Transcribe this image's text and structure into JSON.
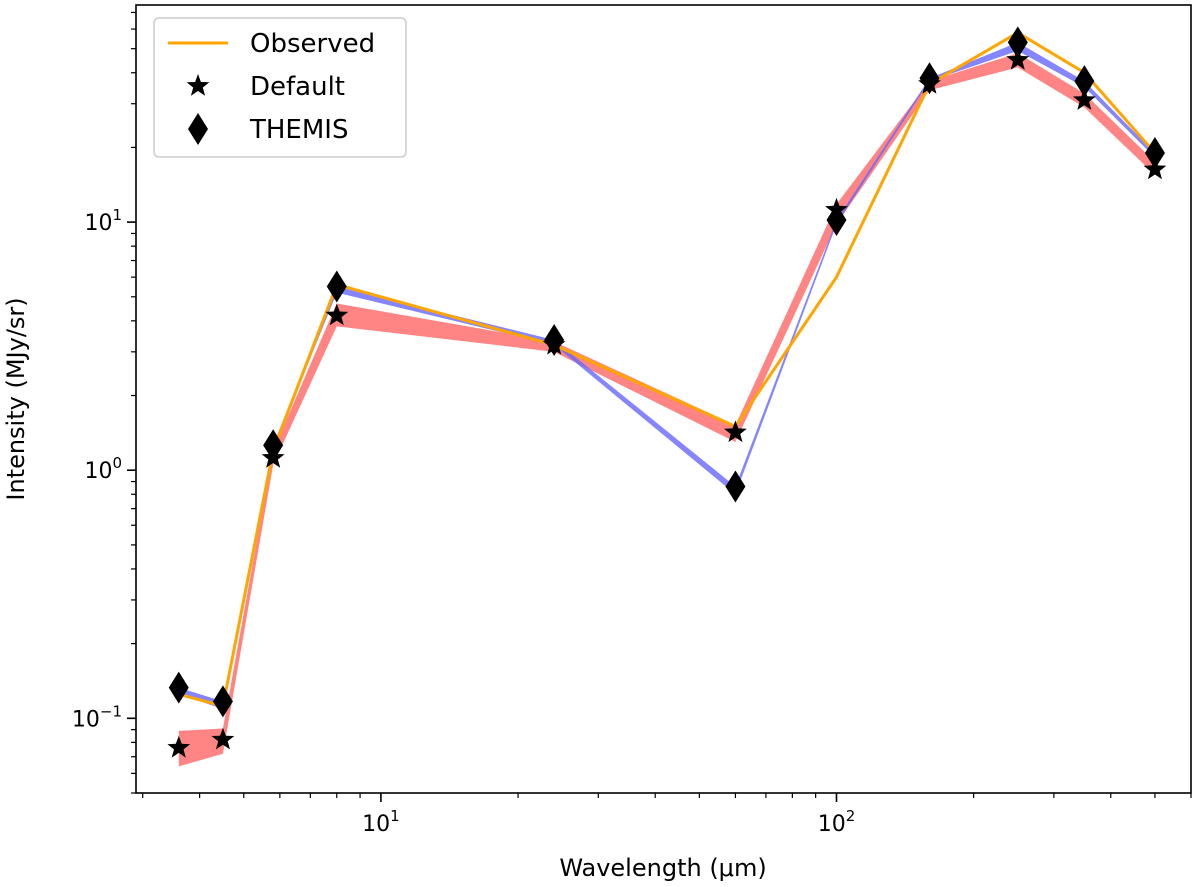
{
  "chart_data": {
    "type": "line",
    "xlabel": "Wavelength (μm)",
    "ylabel": "Intensity (MJy/sr)",
    "xscale": "log",
    "yscale": "log",
    "xlim": [
      2.9,
      600
    ],
    "ylim": [
      0.05,
      75
    ],
    "x_tick_labels": [
      {
        "value": 10,
        "base": "10",
        "exp": "1"
      },
      {
        "value": 100,
        "base": "10",
        "exp": "2"
      }
    ],
    "y_tick_labels": [
      {
        "value": 0.1,
        "base": "10",
        "exp": "−1"
      },
      {
        "value": 1,
        "base": "10",
        "exp": "0"
      },
      {
        "value": 10,
        "base": "10",
        "exp": "1"
      }
    ],
    "x": [
      3.6,
      4.5,
      5.8,
      8.0,
      24,
      60,
      100,
      160,
      250,
      350,
      500
    ],
    "series": [
      {
        "name": "Observed",
        "style": "line",
        "color": "#ffa500",
        "values": [
          0.125,
          0.112,
          1.2,
          5.6,
          3.2,
          1.5,
          6.0,
          36,
          58,
          40,
          19
        ]
      },
      {
        "name": "Default",
        "style": "star",
        "color": "#000000",
        "values": [
          0.076,
          0.082,
          1.12,
          4.2,
          3.2,
          1.42,
          11.2,
          36,
          45,
          31,
          16.3
        ]
      },
      {
        "name": "THEMIS",
        "style": "diamond",
        "color": "#000000",
        "values": [
          0.133,
          0.117,
          1.26,
          5.5,
          3.35,
          0.86,
          10.2,
          38,
          53,
          37,
          19
        ]
      }
    ],
    "bands": [
      {
        "color": "#ff6666",
        "opacity": 0.8,
        "lower": [
          0.064,
          0.072,
          1.05,
          3.8,
          3.0,
          1.3,
          9.8,
          34,
          42,
          29,
          15.5
        ],
        "upper": [
          0.089,
          0.091,
          1.2,
          4.7,
          3.3,
          1.52,
          11.8,
          37,
          48,
          33,
          17.5
        ]
      },
      {
        "color": "#6666ff",
        "opacity": 0.8,
        "lower": [
          0.125,
          0.109,
          1.2,
          5.2,
          3.2,
          0.8,
          9.8,
          37,
          49,
          35,
          18.2
        ]
      }
    ],
    "legend": {
      "position": "top-left",
      "entries": [
        "Observed",
        "Default",
        "THEMIS"
      ]
    },
    "grid": false
  }
}
